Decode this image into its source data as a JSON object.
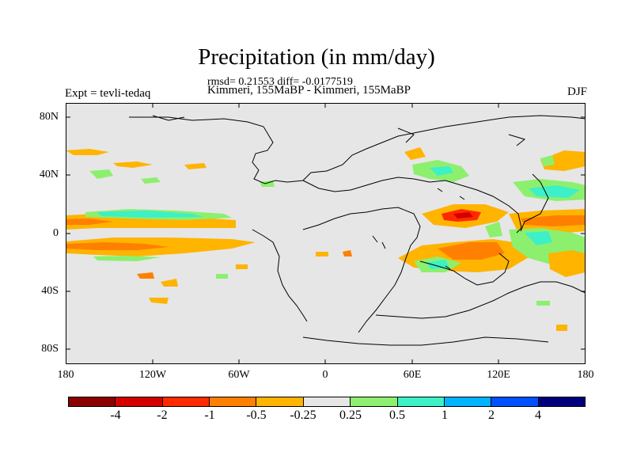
{
  "title": "Precipitation (in mm/day)",
  "stats": "rmsd= 0.21553 diff= -0.0177519",
  "subtitle": "Kimmeri, 155MaBP - Kimmeri, 155MaBP",
  "left_label": "Expt = tevli-tedaq",
  "season": "DJF",
  "lat_labels": [
    "80N",
    "40N",
    "0",
    "40S",
    "80S"
  ],
  "lon_labels": [
    "180",
    "120W",
    "60W",
    "0",
    "60E",
    "120E",
    "180"
  ],
  "colorbar": {
    "levels": [
      "-4",
      "-2",
      "-1",
      "-0.5",
      "-0.25",
      "0.25",
      "0.5",
      "1",
      "2",
      "4"
    ],
    "colors": [
      "#8b0000",
      "#d40000",
      "#ff2a00",
      "#ff7f00",
      "#ffb400",
      "#e6e6e6",
      "#8cf06e",
      "#3cf0c8",
      "#00b4ff",
      "#0050ff",
      "#00007f"
    ]
  },
  "map_colors": {
    "background": "#e6e6e6",
    "coast": "#000000"
  }
}
